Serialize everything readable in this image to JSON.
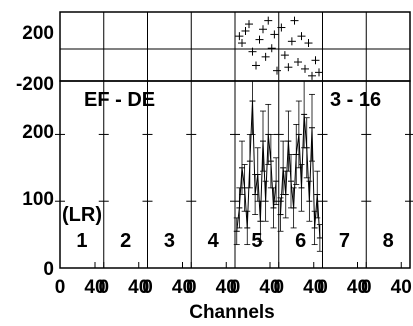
{
  "chart_data": [
    {
      "type": "scatter",
      "panel": "top",
      "marker": "+",
      "yticks": [
        "200",
        "-200"
      ],
      "ylim": [
        -200,
        200
      ],
      "reference_line_y": 0,
      "points": [
        {
          "panel": 5,
          "x": 5,
          "y": 60
        },
        {
          "panel": 5,
          "x": 8,
          "y": 20
        },
        {
          "panel": 5,
          "x": 12,
          "y": 90
        },
        {
          "panel": 5,
          "x": 16,
          "y": 130
        },
        {
          "panel": 5,
          "x": 20,
          "y": -30
        },
        {
          "panel": 5,
          "x": 24,
          "y": -110
        },
        {
          "panel": 5,
          "x": 28,
          "y": 40
        },
        {
          "panel": 5,
          "x": 32,
          "y": 100
        },
        {
          "panel": 5,
          "x": 35,
          "y": -60
        },
        {
          "panel": 5,
          "x": 38,
          "y": 150
        },
        {
          "panel": 5,
          "x": 42,
          "y": -10
        },
        {
          "panel": 5,
          "x": 45,
          "y": 70
        },
        {
          "panel": 5,
          "x": 48,
          "y": -140
        },
        {
          "panel": 6,
          "x": 3,
          "y": 110
        },
        {
          "panel": 6,
          "x": 7,
          "y": -50
        },
        {
          "panel": 6,
          "x": 11,
          "y": -120
        },
        {
          "panel": 6,
          "x": 15,
          "y": 30
        },
        {
          "panel": 6,
          "x": 18,
          "y": 150
        },
        {
          "panel": 6,
          "x": 22,
          "y": -90
        },
        {
          "panel": 6,
          "x": 26,
          "y": 60
        },
        {
          "panel": 6,
          "x": 30,
          "y": -130
        },
        {
          "panel": 6,
          "x": 34,
          "y": 20
        },
        {
          "panel": 6,
          "x": 38,
          "y": -170
        },
        {
          "panel": 6,
          "x": 42,
          "y": -80
        },
        {
          "panel": 6,
          "x": 46,
          "y": -150
        }
      ]
    },
    {
      "type": "line",
      "panel": "bottom",
      "label_left": "EF - DE",
      "label_right": "3 - 16",
      "side_label": "(LR)",
      "xlabel": "Channels",
      "yticks": [
        "200",
        "100",
        "0"
      ],
      "ylim": [
        0,
        280
      ],
      "panel_labels": [
        "1",
        "2",
        "3",
        "4",
        "5",
        "6",
        "7",
        "8"
      ],
      "x_tick_labels": [
        "0",
        "40",
        "0",
        "40",
        "0",
        "40",
        "0",
        "40",
        "0",
        "40",
        "0",
        "40",
        "0",
        "40",
        "0",
        "40"
      ],
      "xlim_per_panel": [
        0,
        50
      ],
      "series": [
        {
          "panel": 5,
          "x": [
            2,
            5,
            8,
            11,
            14,
            17,
            20,
            23,
            26,
            29,
            32,
            35,
            38,
            41,
            44,
            47
          ],
          "y": [
            55,
            90,
            150,
            120,
            60,
            160,
            250,
            110,
            140,
            70,
            190,
            100,
            200,
            160,
            90,
            130
          ],
          "err": [
            20,
            30,
            40,
            35,
            25,
            40,
            50,
            30,
            40,
            30,
            45,
            30,
            45,
            40,
            30,
            35
          ]
        },
        {
          "panel": 6,
          "x": [
            2,
            5,
            8,
            11,
            14,
            17,
            20,
            23,
            26,
            29,
            32,
            35,
            38,
            41,
            44,
            47
          ],
          "y": [
            80,
            150,
            110,
            190,
            130,
            90,
            170,
            200,
            120,
            230,
            180,
            100,
            210,
            60,
            110,
            45
          ],
          "err": [
            25,
            40,
            35,
            45,
            40,
            30,
            45,
            50,
            35,
            50,
            45,
            30,
            50,
            25,
            35,
            20
          ]
        }
      ]
    }
  ]
}
